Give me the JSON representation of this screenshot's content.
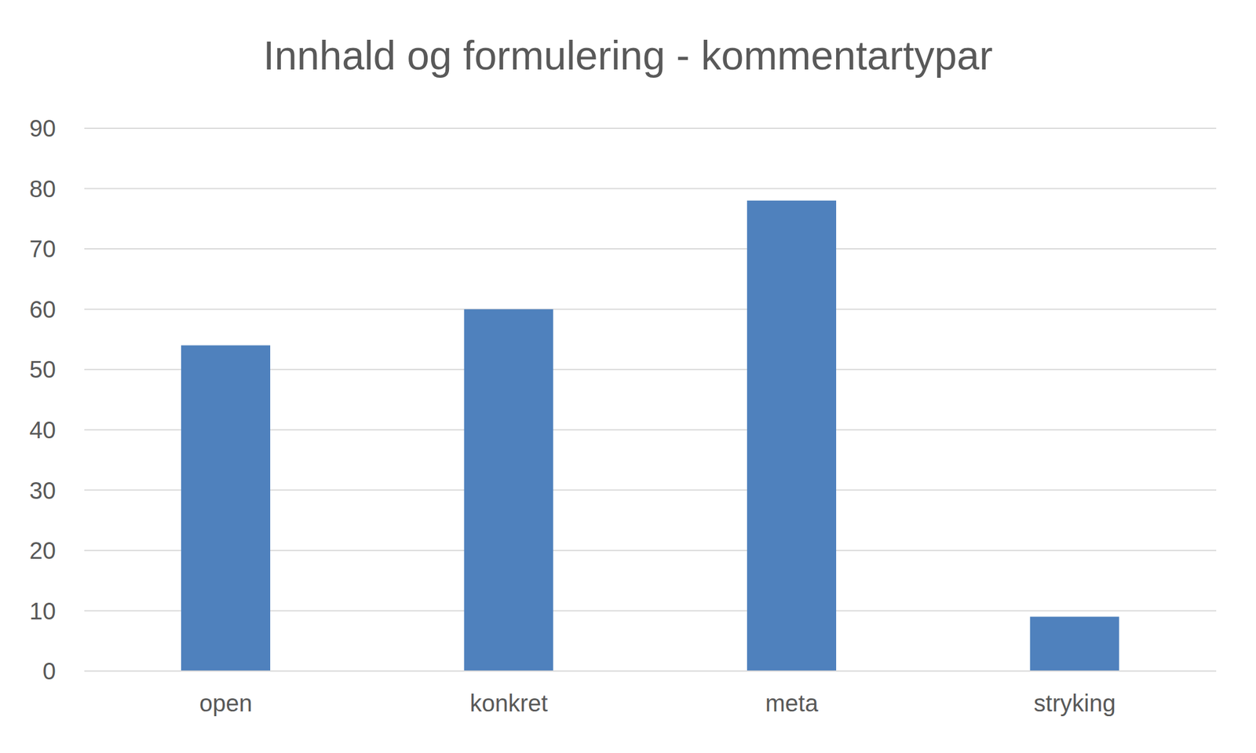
{
  "chart_data": {
    "type": "bar",
    "title": "Innhald og formulering - kommentartypar",
    "categories": [
      "open",
      "konkret",
      "meta",
      "stryking"
    ],
    "values": [
      54,
      60,
      78,
      9
    ],
    "color": "#4f81bd",
    "ylim": [
      0,
      90
    ],
    "yticks": [
      0,
      10,
      20,
      30,
      40,
      50,
      60,
      70,
      80,
      90
    ],
    "grid": true
  }
}
